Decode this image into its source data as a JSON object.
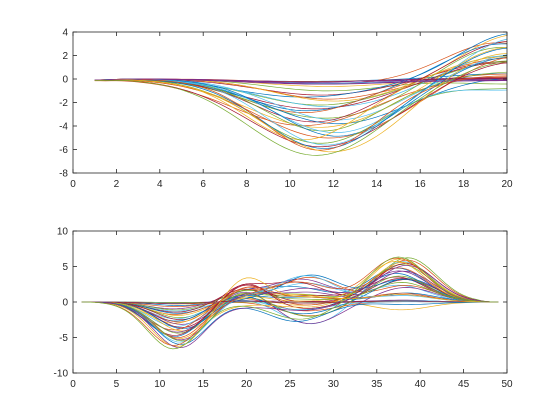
{
  "chart_data": [
    {
      "type": "line",
      "panel": "top",
      "title": "",
      "xlabel": "",
      "ylabel": "",
      "xlim": [
        0,
        20
      ],
      "ylim": [
        -8,
        4
      ],
      "xticks": [
        0,
        2,
        4,
        6,
        8,
        10,
        12,
        14,
        16,
        18,
        20
      ],
      "yticks": [
        -8,
        -6,
        -4,
        -2,
        0,
        2,
        4
      ],
      "x_range": [
        1,
        20
      ],
      "n_series": 40,
      "series_shape": "Curves start near 0 at x=1, descend to a trough around x=11-12 (deepest about -6.5), then rise back through 0 near x=15-17 and end between about -1 and 4 at x=20; a number of curves stay flat near 0.",
      "extremes": {
        "min_y": -6.5,
        "min_at_x": 11.8,
        "max_y": 3.9,
        "max_at_x": 20
      },
      "grid": false,
      "legend": "none"
    },
    {
      "type": "line",
      "panel": "bottom",
      "title": "",
      "xlabel": "",
      "ylabel": "",
      "xlim": [
        0,
        50
      ],
      "ylim": [
        -10,
        10
      ],
      "xticks": [
        0,
        5,
        10,
        15,
        20,
        25,
        30,
        35,
        40,
        45,
        50
      ],
      "yticks": [
        -10,
        -5,
        0,
        5,
        10
      ],
      "x_range": [
        1,
        49
      ],
      "n_series": 40,
      "series_shape": "Curves start at 0 at x=1, dip to a trough near x=12 (about -6.5), rise to a first positive hump near x=19-20 (about 3.7), mix positive and negative humps around x=25-27 (about +3.5 / -3), reach a large peak near x=38 (about 8) and return to 0 at x=49.",
      "extremes": {
        "min_y": -6.6,
        "min_at_x": 12,
        "max_y": 8.1,
        "max_at_x": 37.8
      },
      "grid": false,
      "legend": "none"
    }
  ],
  "colors": [
    "#0072bd",
    "#d95319",
    "#edb120",
    "#7e2f8e",
    "#77ac30",
    "#4dbeee",
    "#a2142f"
  ]
}
